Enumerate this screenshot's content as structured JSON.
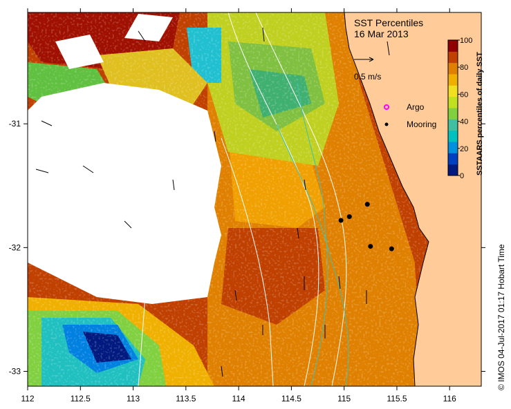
{
  "title": "SST Percentiles",
  "date": "16 Mar 2013",
  "vector_scale": "0.5 m/s",
  "legend": {
    "argo": "Argo",
    "mooring": "Mooring",
    "argo_color": "#ff00ff",
    "mooring_color": "#000000"
  },
  "colorbar": {
    "label": "SSTAARS percentiles of daily SST",
    "ticks": [
      "0",
      "20",
      "40",
      "60",
      "80",
      "100"
    ],
    "colors": [
      "#001a80",
      "#0040c0",
      "#0090e0",
      "#00c0c0",
      "#40c0a0",
      "#80d040",
      "#c0e020",
      "#f0e020",
      "#f0b000",
      "#e08000",
      "#c04000",
      "#900000"
    ]
  },
  "axes": {
    "x_ticks": [
      "112",
      "112.5",
      "113",
      "113.5",
      "114",
      "114.5",
      "115",
      "115.5",
      "116"
    ],
    "y_ticks": [
      "-31",
      "-32",
      "-33"
    ]
  },
  "credit": "© IMOS 04-Jul-2017 01:17 Hobart Time",
  "colors": {
    "land": "#ffcc99",
    "no_data": "#ffffff",
    "coast": "#000000"
  },
  "moorings": [
    {
      "lon": 114.97,
      "lat": -31.78
    },
    {
      "lon": 115.05,
      "lat": -31.75
    },
    {
      "lon": 115.22,
      "lat": -31.65
    },
    {
      "lon": 115.25,
      "lat": -31.99
    },
    {
      "lon": 115.45,
      "lat": -32.01
    }
  ]
}
